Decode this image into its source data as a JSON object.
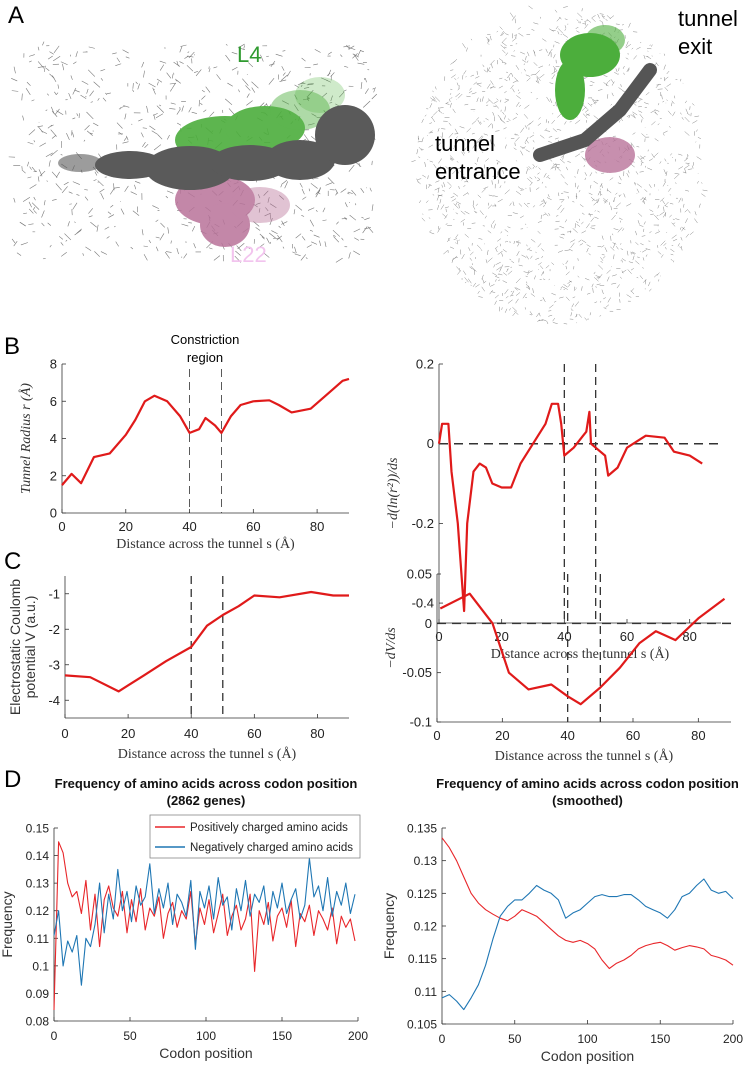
{
  "panels": {
    "a": "A",
    "b": "B",
    "c": "C",
    "d": "D"
  },
  "structure": {
    "l4_label": "L4",
    "l22_label": "L22",
    "tunnel_exit_line1": "tunnel",
    "tunnel_exit_line2": "exit",
    "tunnel_entrance_line1": "tunnel",
    "tunnel_entrance_line2": "entrance",
    "colors": {
      "l4": "#3fa535",
      "l22": "#c77fa6",
      "tunnel": "#555555",
      "l22_text": "#f2c4ee",
      "l4_text": "#2f9a2f"
    }
  },
  "constriction_label_line1": "Constriction",
  "constriction_label_line2": "region",
  "chart_data": [
    {
      "id": "B1",
      "type": "line",
      "xlabel": "Distance across the tunnel s (Å)",
      "ylabel": "Tunnel Radius r (Å)",
      "xlim": [
        0,
        90
      ],
      "ylim": [
        0,
        8
      ],
      "xticks": [
        "0",
        "20",
        "40",
        "60",
        "80"
      ],
      "yticks": [
        "0",
        "2",
        "4",
        "6",
        "8"
      ],
      "vlines": [
        40,
        50
      ],
      "hline": null,
      "series": [
        {
          "name": "radius",
          "color": "#e01a1a",
          "x": [
            0,
            3,
            6,
            10,
            15,
            20,
            23,
            26,
            29,
            33,
            37,
            40,
            43,
            45,
            48,
            50,
            53,
            56,
            60,
            65,
            68,
            72,
            78,
            84,
            88,
            90
          ],
          "y": [
            1.5,
            2.1,
            1.6,
            3.0,
            3.2,
            4.2,
            5.0,
            6.0,
            6.3,
            6.0,
            5.2,
            4.3,
            4.5,
            5.1,
            4.7,
            4.3,
            5.2,
            5.8,
            6.0,
            6.05,
            5.8,
            5.4,
            5.6,
            6.5,
            7.1,
            7.2
          ]
        }
      ]
    },
    {
      "id": "B2",
      "type": "line",
      "xlabel": "Distance across the tunnel s (Å)",
      "ylabel": "−d(ln(r²))/ds",
      "xlim": [
        0,
        90
      ],
      "ylim": [
        -0.45,
        0.2
      ],
      "xticks": [
        "0",
        "20",
        "40",
        "60",
        "80"
      ],
      "yticks": [
        "-0.4",
        "-0.2",
        "0",
        "0.2"
      ],
      "vlines": [
        40,
        50
      ],
      "hline": 0,
      "series": [
        {
          "name": "derivative",
          "color": "#e01a1a",
          "x": [
            0,
            1,
            3,
            4,
            6,
            8,
            9,
            11,
            13,
            15,
            17,
            20,
            23,
            26,
            30,
            34,
            36,
            38,
            39,
            40,
            43,
            46,
            47,
            48,
            48.5,
            50,
            53,
            54,
            57,
            60,
            66,
            72,
            75,
            80,
            84
          ],
          "y": [
            0,
            0.05,
            0.05,
            -0.07,
            -0.2,
            -0.42,
            -0.2,
            -0.07,
            -0.05,
            -0.06,
            -0.1,
            -0.11,
            -0.11,
            -0.05,
            0.0,
            0.05,
            0.1,
            0.1,
            0.05,
            -0.03,
            -0.01,
            0.02,
            0.03,
            0.08,
            0.0,
            -0.01,
            -0.03,
            -0.08,
            -0.06,
            -0.01,
            0.02,
            0.015,
            -0.02,
            -0.03,
            -0.05
          ]
        }
      ]
    },
    {
      "id": "C1",
      "type": "line",
      "xlabel": "Distance across the tunnel s (Å)",
      "ylabel_line1": "Electrostatic Coulomb",
      "ylabel_line2": "potential V (a.u.)",
      "xlim": [
        0,
        90
      ],
      "ylim": [
        -4.5,
        -0.5
      ],
      "xticks": [
        "0",
        "20",
        "40",
        "60",
        "80"
      ],
      "yticks": [
        "-4",
        "-3",
        "-2",
        "-1"
      ],
      "vlines": [
        40,
        50
      ],
      "hline": null,
      "series": [
        {
          "name": "potential",
          "color": "#e01a1a",
          "x": [
            0,
            8,
            17,
            25,
            32,
            40,
            45,
            50,
            55,
            60,
            68,
            78,
            85,
            90
          ],
          "y": [
            -3.3,
            -3.35,
            -3.75,
            -3.3,
            -2.9,
            -2.5,
            -1.9,
            -1.6,
            -1.35,
            -1.05,
            -1.1,
            -0.95,
            -1.05,
            -1.05
          ]
        }
      ]
    },
    {
      "id": "C2",
      "type": "line",
      "xlabel": "Distance across the tunnel s (Å)",
      "ylabel": "−dV/ds",
      "xlim": [
        0,
        90
      ],
      "ylim": [
        -0.1,
        0.05
      ],
      "xticks": [
        "0",
        "20",
        "40",
        "60",
        "80"
      ],
      "yticks": [
        "-0.1",
        "-0.05",
        "0",
        "0.05"
      ],
      "vlines": [
        40,
        50
      ],
      "hline": 0,
      "series": [
        {
          "name": "field",
          "color": "#e01a1a",
          "x": [
            1,
            10,
            17,
            22,
            28,
            35,
            40,
            44,
            50,
            56,
            62,
            67,
            73,
            80,
            88
          ],
          "y": [
            0.015,
            0.03,
            0.0,
            -0.05,
            -0.067,
            -0.062,
            -0.074,
            -0.082,
            -0.065,
            -0.045,
            -0.02,
            -0.008,
            -0.017,
            0.005,
            0.025
          ]
        }
      ]
    },
    {
      "id": "D1",
      "type": "line",
      "title_line1": "Frequency of amino acids across codon position",
      "title_line2": "(2862 genes)",
      "xlabel": "Codon position",
      "ylabel": "Frequency",
      "xlim": [
        0,
        200
      ],
      "ylim": [
        0.08,
        0.15
      ],
      "xticks": [
        "0",
        "50",
        "100",
        "150",
        "200"
      ],
      "yticks": [
        "0.08",
        "0.09",
        "0.1",
        "0.11",
        "0.12",
        "0.13",
        "0.14",
        "0.15"
      ],
      "legend_position": "top-right",
      "vlines": [],
      "hline": null,
      "x_step": 3,
      "series": [
        {
          "name": "Positively charged amino acids",
          "color": "#e8262a",
          "y": [
            0.084,
            0.145,
            0.141,
            0.13,
            0.125,
            0.127,
            0.119,
            0.131,
            0.113,
            0.126,
            0.107,
            0.124,
            0.129,
            0.121,
            0.118,
            0.127,
            0.112,
            0.124,
            0.116,
            0.128,
            0.113,
            0.121,
            0.118,
            0.125,
            0.11,
            0.119,
            0.123,
            0.114,
            0.12,
            0.117,
            0.127,
            0.108,
            0.121,
            0.115,
            0.124,
            0.112,
            0.119,
            0.126,
            0.111,
            0.118,
            0.122,
            0.113,
            0.117,
            0.126,
            0.098,
            0.12,
            0.115,
            0.123,
            0.109,
            0.118,
            0.121,
            0.114,
            0.124,
            0.107,
            0.119,
            0.116,
            0.122,
            0.111,
            0.12,
            0.117,
            0.113,
            0.121,
            0.108,
            0.118,
            0.114,
            0.117,
            0.109
          ]
        },
        {
          "name": "Negatively charged amino acids",
          "color": "#1f77b4",
          "y": [
            0.111,
            0.12,
            0.1,
            0.109,
            0.105,
            0.111,
            0.093,
            0.11,
            0.107,
            0.115,
            0.13,
            0.112,
            0.126,
            0.117,
            0.135,
            0.12,
            0.127,
            0.116,
            0.129,
            0.122,
            0.125,
            0.137,
            0.119,
            0.128,
            0.121,
            0.13,
            0.115,
            0.126,
            0.123,
            0.118,
            0.131,
            0.106,
            0.127,
            0.121,
            0.129,
            0.117,
            0.132,
            0.122,
            0.125,
            0.113,
            0.128,
            0.12,
            0.131,
            0.118,
            0.126,
            0.123,
            0.129,
            0.115,
            0.127,
            0.121,
            0.13,
            0.119,
            0.124,
            0.128,
            0.117,
            0.122,
            0.139,
            0.125,
            0.129,
            0.12,
            0.132,
            0.118,
            0.127,
            0.122,
            0.13,
            0.119,
            0.126
          ]
        }
      ]
    },
    {
      "id": "D2",
      "type": "line",
      "title_line1": "Frequency of amino acids across codon position",
      "title_line2": "(smoothed)",
      "xlabel": "Codon position",
      "ylabel": "Frequency",
      "xlim": [
        0,
        200
      ],
      "ylim": [
        0.105,
        0.135
      ],
      "xticks": [
        "0",
        "50",
        "100",
        "150",
        "200"
      ],
      "yticks": [
        "0.105",
        "0.11",
        "0.115",
        "0.12",
        "0.125",
        "0.13",
        "0.135"
      ],
      "vlines": [],
      "hline": null,
      "x_step": 5,
      "series": [
        {
          "name": "Positively charged amino acids",
          "color": "#e8262a",
          "y": [
            0.1335,
            0.132,
            0.13,
            0.1275,
            0.125,
            0.1235,
            0.1225,
            0.1218,
            0.1212,
            0.1208,
            0.1215,
            0.1225,
            0.122,
            0.1215,
            0.1205,
            0.1195,
            0.1185,
            0.1178,
            0.1175,
            0.1178,
            0.1173,
            0.1165,
            0.1148,
            0.1135,
            0.1143,
            0.1148,
            0.1155,
            0.1165,
            0.117,
            0.1173,
            0.1175,
            0.117,
            0.1163,
            0.1167,
            0.117,
            0.1168,
            0.1165,
            0.1155,
            0.1152,
            0.1148,
            0.114
          ]
        },
        {
          "name": "Negatively charged amino acids",
          "color": "#1f77b4",
          "y": [
            0.109,
            0.1095,
            0.1085,
            0.1072,
            0.109,
            0.111,
            0.114,
            0.118,
            0.1215,
            0.123,
            0.124,
            0.124,
            0.125,
            0.1262,
            0.1255,
            0.125,
            0.124,
            0.1212,
            0.122,
            0.1225,
            0.1235,
            0.1245,
            0.1248,
            0.1245,
            0.1245,
            0.1248,
            0.1248,
            0.124,
            0.123,
            0.1225,
            0.122,
            0.1212,
            0.1225,
            0.1245,
            0.125,
            0.1262,
            0.1272,
            0.1255,
            0.125,
            0.1253,
            0.1242
          ]
        }
      ]
    }
  ]
}
